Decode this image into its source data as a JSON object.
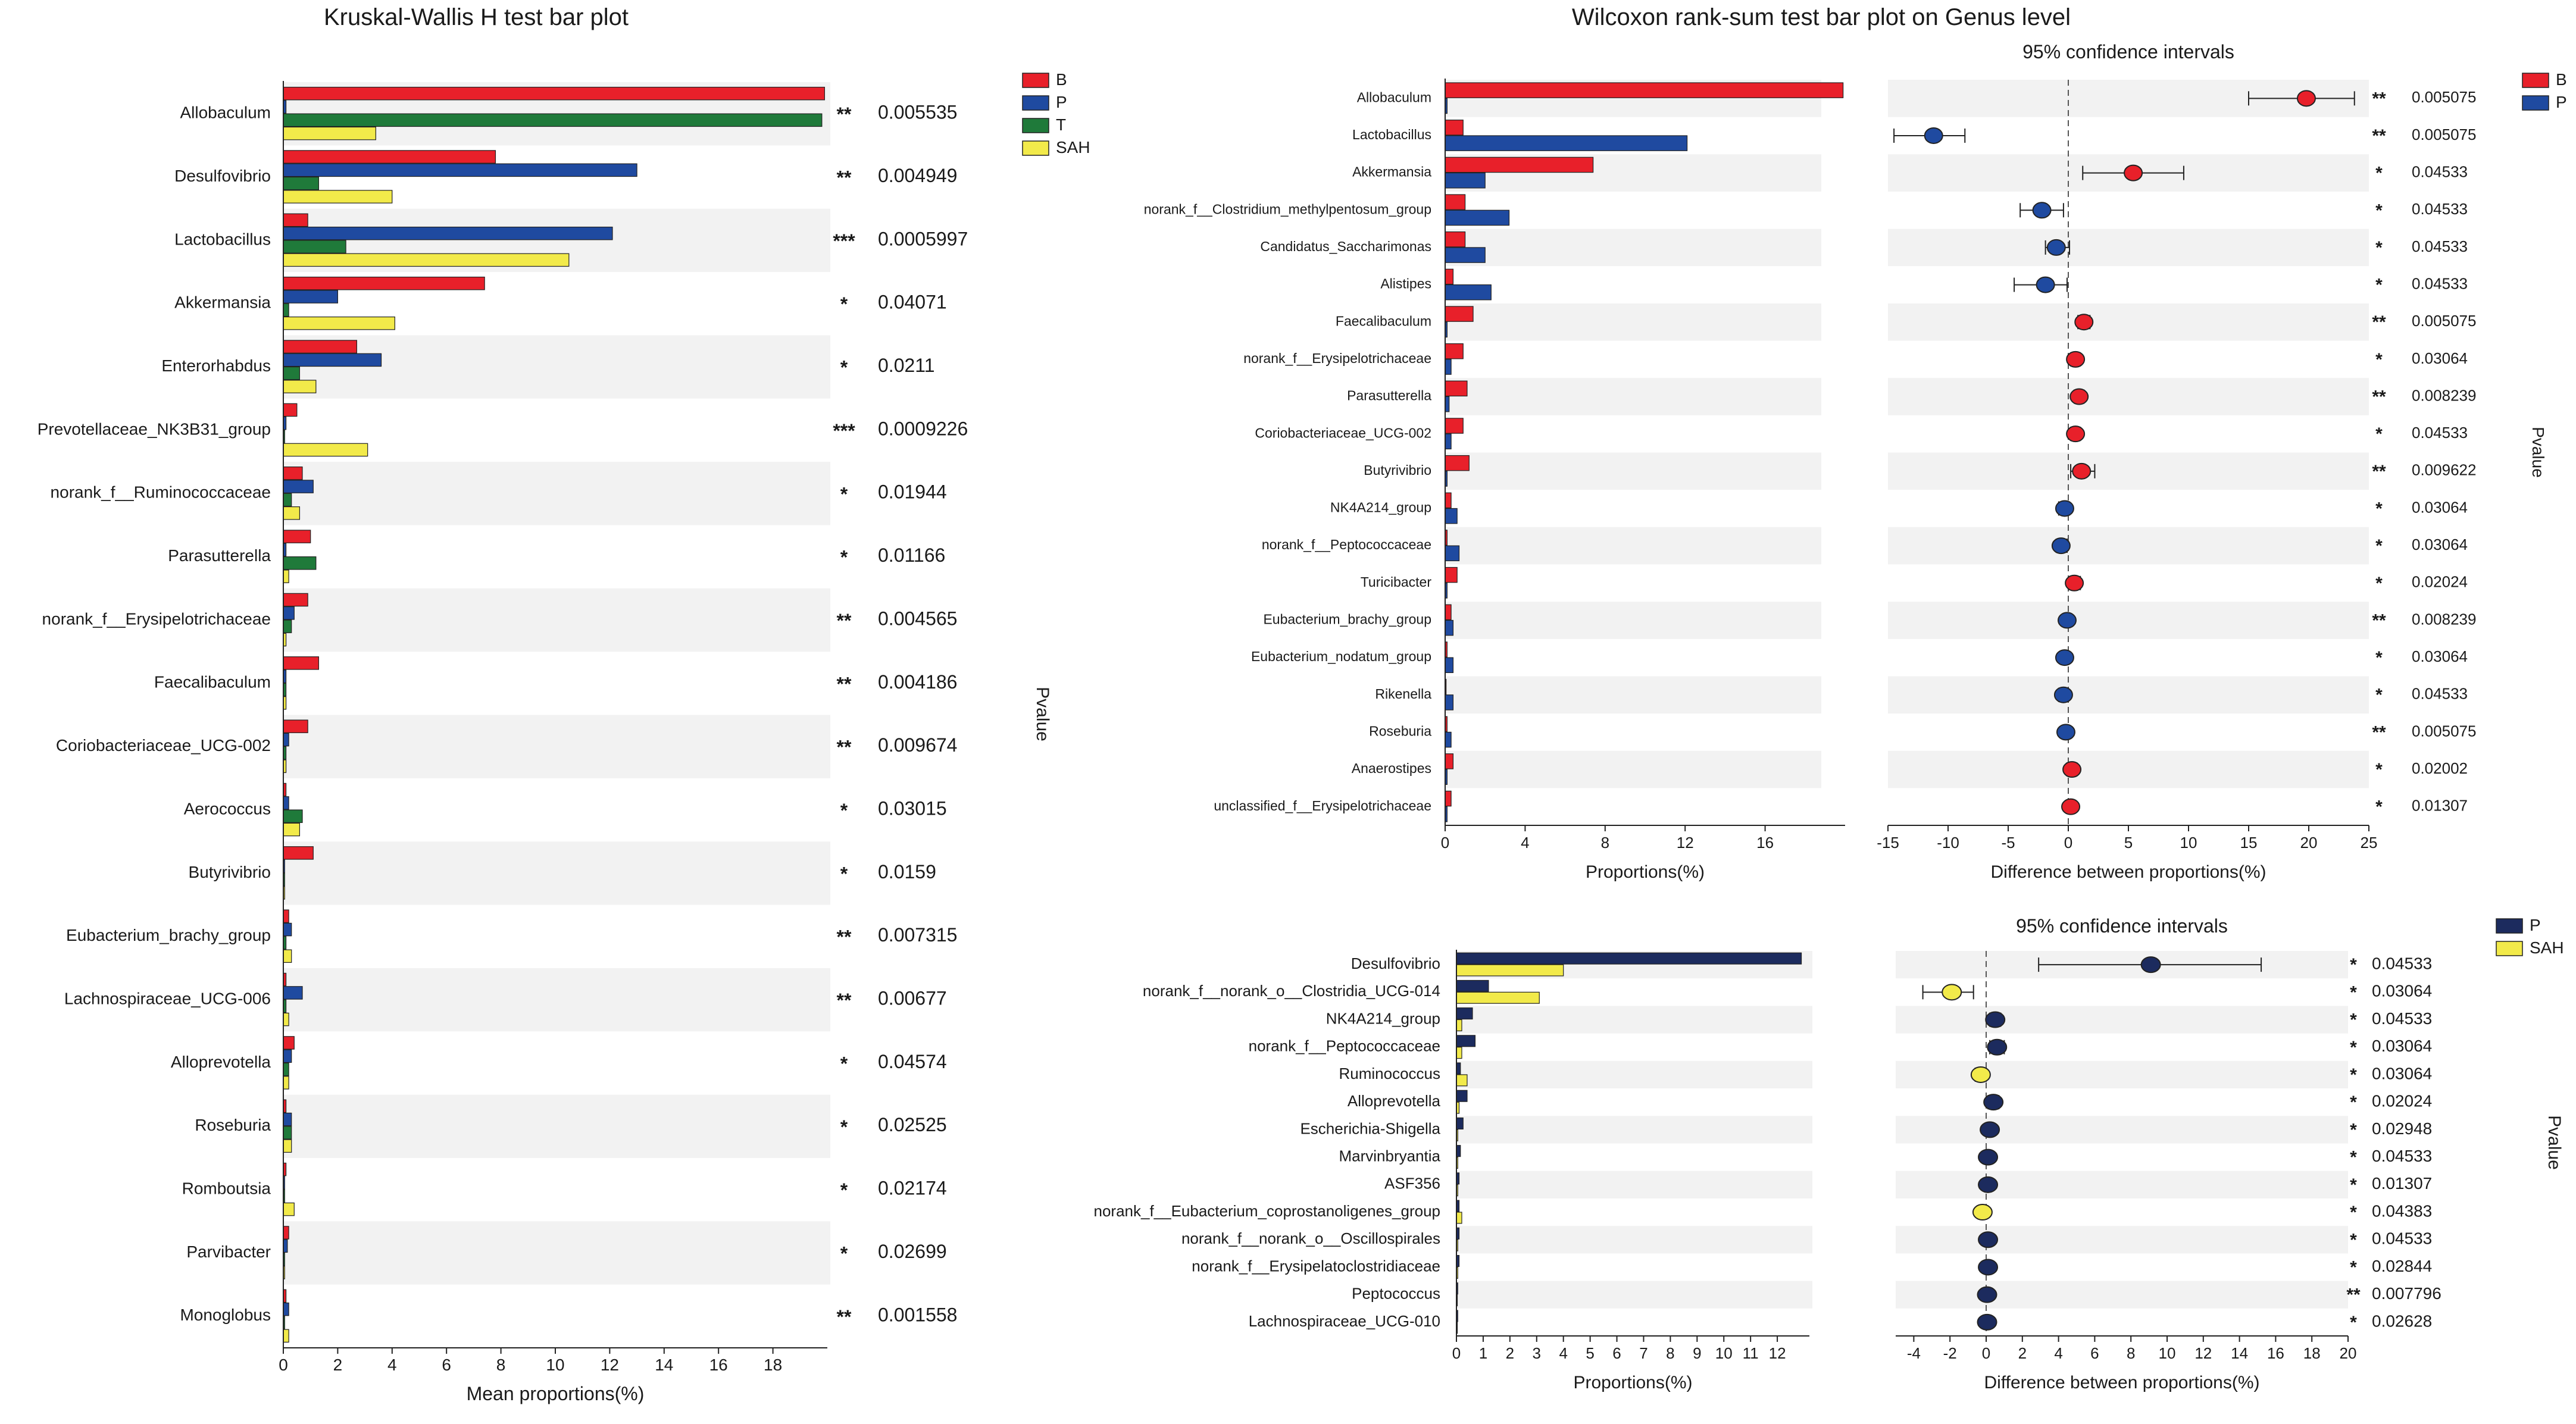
{
  "colors": {
    "B": "#e8202a",
    "P": "#1f4aa0",
    "T": "#1f7a3a",
    "SAH": "#f2ea4a",
    "P_dark": "#1c2b5e",
    "star": "#e04a4a",
    "band": "#f2f2f2"
  },
  "chart_data": [
    {
      "type": "bar",
      "id": "kruskal",
      "title": "Kruskal-Wallis H test bar plot",
      "xlabel": "Mean proportions(%)",
      "ylabel": "Pvalue",
      "xlim": [
        0,
        20
      ],
      "xticks": [
        "0",
        "2",
        "4",
        "6",
        "8",
        "10",
        "12",
        "14",
        "16",
        "18"
      ],
      "legend": [
        "B",
        "P",
        "T",
        "SAH"
      ],
      "categories": [
        "Allobaculum",
        "Desulfovibrio",
        "Lactobacillus",
        "Akkermansia",
        "Enterorhabdus",
        "Prevotellaceae_NK3B31_group",
        "norank_f__Ruminococcaceae",
        "Parasutterella",
        "norank_f__Erysipelotrichaceae",
        "Faecalibaculum",
        "Coriobacteriaceae_UCG-002",
        "Aerococcus",
        "Butyrivibrio",
        "Eubacterium_brachy_group",
        "Lachnospiraceae_UCG-006",
        "Alloprevotella",
        "Roseburia",
        "Romboutsia",
        "Parvibacter",
        "Monoglobus"
      ],
      "series": [
        {
          "name": "B",
          "values": [
            19.9,
            7.8,
            0.9,
            7.4,
            2.7,
            0.5,
            0.7,
            1.0,
            0.9,
            1.3,
            0.9,
            0.1,
            1.1,
            0.2,
            0.1,
            0.4,
            0.1,
            0.1,
            0.2,
            0.1
          ]
        },
        {
          "name": "P",
          "values": [
            0.1,
            13.0,
            12.1,
            2.0,
            3.6,
            0.1,
            1.1,
            0.1,
            0.4,
            0.1,
            0.2,
            0.2,
            0.05,
            0.3,
            0.7,
            0.3,
            0.3,
            0.05,
            0.15,
            0.2
          ]
        },
        {
          "name": "T",
          "values": [
            19.8,
            1.3,
            2.3,
            0.2,
            0.6,
            0.05,
            0.3,
            1.2,
            0.3,
            0.1,
            0.1,
            0.7,
            0.05,
            0.1,
            0.1,
            0.2,
            0.3,
            0.05,
            0.05,
            0.05
          ]
        },
        {
          "name": "SAH",
          "values": [
            3.4,
            4.0,
            10.5,
            4.1,
            1.2,
            3.1,
            0.6,
            0.2,
            0.1,
            0.1,
            0.1,
            0.6,
            0.05,
            0.3,
            0.2,
            0.2,
            0.3,
            0.4,
            0.05,
            0.2
          ]
        }
      ],
      "stars": [
        "**",
        "**",
        "***",
        "*",
        "*",
        "***",
        "*",
        "*",
        "**",
        "**",
        "**",
        "*",
        "*",
        "**",
        "**",
        "*",
        "*",
        "*",
        "*",
        "**"
      ],
      "pvalues": [
        "0.005535",
        "0.004949",
        "0.0005997",
        "0.04071",
        "0.0211",
        "0.0009226",
        "0.01944",
        "0.01166",
        "0.004565",
        "0.004186",
        "0.009674",
        "0.03015",
        "0.0159",
        "0.007315",
        "0.00677",
        "0.04574",
        "0.02525",
        "0.02174",
        "0.02699",
        "0.001558"
      ]
    },
    {
      "type": "bar",
      "id": "wilcox-bp",
      "title": "Wilcoxon rank-sum test bar plot on Genus level",
      "ci_title": "95% confidence intervals",
      "xlabel": "Proportions(%)",
      "ci_xlabel": "Difference between proportions(%)",
      "ylabel": "Pvalue",
      "xlim": [
        0,
        20
      ],
      "xticks": [
        "0",
        "4",
        "8",
        "12",
        "16"
      ],
      "ci_xlim": [
        -15,
        25
      ],
      "ci_xticks": [
        "-15",
        "-10",
        "-5",
        "0",
        "5",
        "10",
        "15",
        "20",
        "25"
      ],
      "legend": [
        "B",
        "P"
      ],
      "categories": [
        "Allobaculum",
        "Lactobacillus",
        "Akkermansia",
        "norank_f__Clostridium_methylpentosum_group",
        "Candidatus_Saccharimonas",
        "Alistipes",
        "Faecalibaculum",
        "norank_f__Erysipelotrichaceae",
        "Parasutterella",
        "Coriobacteriaceae_UCG-002",
        "Butyrivibrio",
        "NK4A214_group",
        "norank_f__Peptococcaceae",
        "Turicibacter",
        "Eubacterium_brachy_group",
        "Eubacterium_nodatum_group",
        "Rikenella",
        "Roseburia",
        "Anaerostipes",
        "unclassified_f__Erysipelotrichaceae"
      ],
      "series": [
        {
          "name": "B",
          "values": [
            19.9,
            0.9,
            7.4,
            1.0,
            1.0,
            0.4,
            1.4,
            0.9,
            1.1,
            0.9,
            1.2,
            0.3,
            0.1,
            0.6,
            0.3,
            0.1,
            0.05,
            0.1,
            0.4,
            0.3
          ]
        },
        {
          "name": "P",
          "values": [
            0.1,
            12.1,
            2.0,
            3.2,
            2.0,
            2.3,
            0.1,
            0.3,
            0.2,
            0.3,
            0.1,
            0.6,
            0.7,
            0.1,
            0.4,
            0.4,
            0.4,
            0.3,
            0.1,
            0.1
          ]
        }
      ],
      "diff": [
        19.8,
        -11.2,
        5.4,
        -2.2,
        -1.0,
        -1.9,
        1.3,
        0.6,
        0.9,
        0.6,
        1.1,
        -0.3,
        -0.6,
        0.5,
        -0.1,
        -0.3,
        -0.4,
        -0.2,
        0.3,
        0.2
      ],
      "ci_low": [
        15.0,
        -14.5,
        1.2,
        -4.0,
        -1.9,
        -4.5,
        0.8,
        0.2,
        0.5,
        0.2,
        0.2,
        -0.8,
        -1.0,
        0.1,
        -0.4,
        -0.6,
        -0.8,
        -0.5,
        -0.1,
        -0.1
      ],
      "ci_high": [
        23.8,
        -8.6,
        9.6,
        -0.4,
        0.1,
        -0.1,
        1.8,
        1.0,
        1.3,
        1.0,
        2.2,
        0.1,
        -0.1,
        1.0,
        0.2,
        0.0,
        0.0,
        0.1,
        0.7,
        0.5
      ],
      "stars": [
        "**",
        "**",
        "*",
        "*",
        "*",
        "*",
        "**",
        "*",
        "**",
        "*",
        "**",
        "*",
        "*",
        "*",
        "**",
        "*",
        "*",
        "**",
        "*",
        "*"
      ],
      "pvalues": [
        "0.005075",
        "0.005075",
        "0.04533",
        "0.04533",
        "0.04533",
        "0.04533",
        "0.005075",
        "0.03064",
        "0.008239",
        "0.04533",
        "0.009622",
        "0.03064",
        "0.03064",
        "0.02024",
        "0.008239",
        "0.03064",
        "0.04533",
        "0.005075",
        "0.02002",
        "0.01307"
      ]
    },
    {
      "type": "bar",
      "id": "wilcox-psah",
      "ci_title": "95% confidence intervals",
      "xlabel": "Proportions(%)",
      "ci_xlabel": "Difference between proportions(%)",
      "ylabel": "Pvalue",
      "xlim": [
        0,
        13.2
      ],
      "xticks": [
        "0",
        "1",
        "2",
        "3",
        "4",
        "5",
        "6",
        "7",
        "8",
        "9",
        "10",
        "11",
        "12"
      ],
      "ci_xlim": [
        -5,
        20
      ],
      "ci_xticks": [
        "-4",
        "-2",
        "0",
        "2",
        "4",
        "6",
        "8",
        "10",
        "12",
        "14",
        "16",
        "18",
        "20"
      ],
      "legend": [
        "P",
        "SAH"
      ],
      "categories": [
        "Desulfovibrio",
        "norank_f__norank_o__Clostridia_UCG-014",
        "NK4A214_group",
        "norank_f__Peptococcaceae",
        "Ruminococcus",
        "Alloprevotella",
        "Escherichia-Shigella",
        "Marvinbryantia",
        "ASF356",
        "norank_f__Eubacterium_coprostanoligenes_group",
        "norank_f__norank_o__Oscillospirales",
        "norank_f__Erysipelatoclostridiaceae",
        "Peptococcus",
        "Lachnospiraceae_UCG-010"
      ],
      "series": [
        {
          "name": "P",
          "values": [
            12.9,
            1.2,
            0.6,
            0.7,
            0.15,
            0.4,
            0.25,
            0.15,
            0.1,
            0.1,
            0.1,
            0.1,
            0.05,
            0.05
          ]
        },
        {
          "name": "SAH",
          "values": [
            4.0,
            3.1,
            0.2,
            0.2,
            0.4,
            0.1,
            0.05,
            0.05,
            0.05,
            0.2,
            0.05,
            0.05,
            0.02,
            0.02
          ]
        }
      ],
      "diff": [
        9.1,
        -1.9,
        0.5,
        0.6,
        -0.3,
        0.4,
        0.2,
        0.1,
        0.1,
        -0.2,
        0.1,
        0.1,
        0.05,
        0.05
      ],
      "ci_low": [
        2.9,
        -3.5,
        0.2,
        0.2,
        -0.6,
        0.1,
        0.05,
        0.0,
        0.0,
        -0.4,
        -0.05,
        -0.05,
        -0.1,
        -0.1
      ],
      "ci_high": [
        15.2,
        -0.7,
        0.8,
        1.0,
        0.0,
        0.7,
        0.4,
        0.2,
        0.2,
        0.0,
        0.2,
        0.2,
        0.2,
        0.2
      ],
      "stars": [
        "*",
        "*",
        "*",
        "*",
        "*",
        "*",
        "*",
        "*",
        "*",
        "*",
        "*",
        "*",
        "**",
        "*"
      ],
      "pvalues": [
        "0.04533",
        "0.03064",
        "0.04533",
        "0.03064",
        "0.03064",
        "0.02024",
        "0.02948",
        "0.04533",
        "0.01307",
        "0.04383",
        "0.04533",
        "0.02844",
        "0.007796",
        "0.02628"
      ]
    }
  ]
}
